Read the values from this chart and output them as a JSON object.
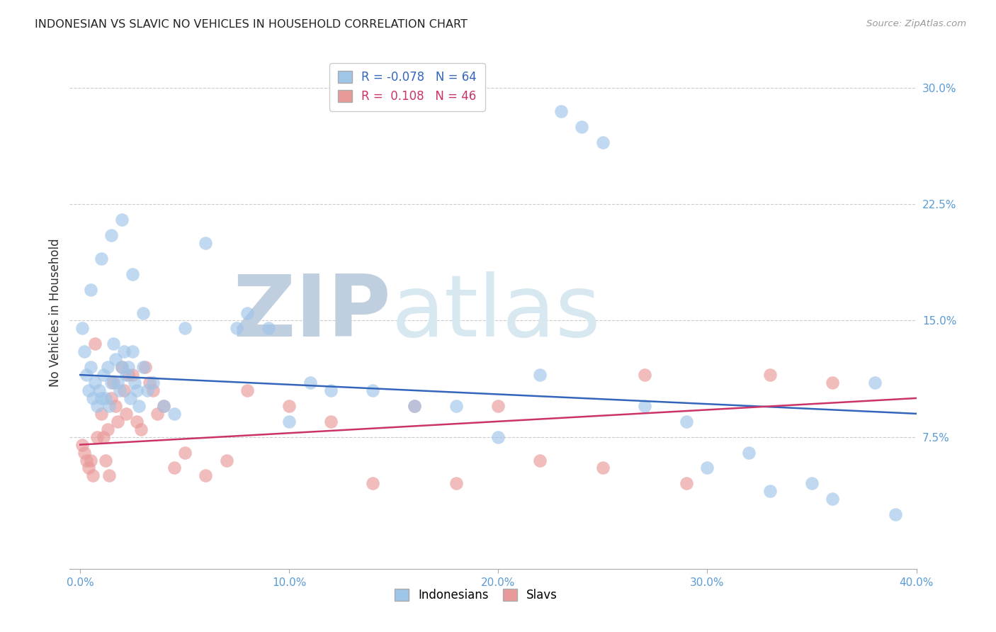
{
  "title": "INDONESIAN VS SLAVIC NO VEHICLES IN HOUSEHOLD CORRELATION CHART",
  "source": "Source: ZipAtlas.com",
  "ylabel": "No Vehicles in Household",
  "xlabel_ticks": [
    "0.0%",
    "",
    "10.0%",
    "",
    "20.0%",
    "",
    "30.0%",
    "",
    "40.0%"
  ],
  "xlabel_vals": [
    0.0,
    5.0,
    10.0,
    15.0,
    20.0,
    25.0,
    30.0,
    35.0,
    40.0
  ],
  "ylabel_ticks": [
    "7.5%",
    "15.0%",
    "22.5%",
    "30.0%"
  ],
  "ylabel_vals": [
    7.5,
    15.0,
    22.5,
    30.0
  ],
  "xlim": [
    -0.5,
    40.0
  ],
  "ylim": [
    -1.0,
    32.0
  ],
  "blue_R": -0.078,
  "blue_N": 64,
  "pink_R": 0.108,
  "pink_N": 46,
  "blue_label": "Indonesians",
  "pink_label": "Slavs",
  "blue_color": "#9fc5e8",
  "pink_color": "#ea9999",
  "blue_line_color": "#3366bb",
  "pink_line_color": "#cc3366",
  "watermark_zip_color": "#c0cfe0",
  "watermark_atlas_color": "#d8e8f0",
  "background_color": "#ffffff",
  "blue_x": [
    0.1,
    0.2,
    0.3,
    0.4,
    0.5,
    0.6,
    0.7,
    0.8,
    0.9,
    1.0,
    1.1,
    1.2,
    1.3,
    1.4,
    1.5,
    1.6,
    1.7,
    1.8,
    1.9,
    2.0,
    2.1,
    2.2,
    2.3,
    2.4,
    2.5,
    2.6,
    2.7,
    2.8,
    3.0,
    3.2,
    3.5,
    4.0,
    4.5,
    5.0,
    6.0,
    7.5,
    8.0,
    9.0,
    10.0,
    11.0,
    12.0,
    14.0,
    16.0,
    18.0,
    20.0,
    22.0,
    23.0,
    24.0,
    25.0,
    27.0,
    29.0,
    30.0,
    32.0,
    33.0,
    35.0,
    36.0,
    38.0,
    39.0,
    0.5,
    1.0,
    1.5,
    2.0,
    2.5,
    3.0
  ],
  "blue_y": [
    14.5,
    13.0,
    11.5,
    10.5,
    12.0,
    10.0,
    11.0,
    9.5,
    10.5,
    10.0,
    11.5,
    10.0,
    12.0,
    9.5,
    11.0,
    13.5,
    12.5,
    11.0,
    10.5,
    12.0,
    13.0,
    11.5,
    12.0,
    10.0,
    13.0,
    11.0,
    10.5,
    9.5,
    12.0,
    10.5,
    11.0,
    9.5,
    9.0,
    14.5,
    20.0,
    14.5,
    15.5,
    14.5,
    8.5,
    11.0,
    10.5,
    10.5,
    9.5,
    9.5,
    7.5,
    11.5,
    28.5,
    27.5,
    26.5,
    9.5,
    8.5,
    5.5,
    6.5,
    4.0,
    4.5,
    3.5,
    11.0,
    2.5,
    17.0,
    19.0,
    20.5,
    21.5,
    18.0,
    15.5
  ],
  "pink_x": [
    0.1,
    0.2,
    0.3,
    0.4,
    0.5,
    0.6,
    0.8,
    1.0,
    1.1,
    1.2,
    1.3,
    1.5,
    1.6,
    1.7,
    1.8,
    2.0,
    2.1,
    2.2,
    2.5,
    2.7,
    2.9,
    3.1,
    3.3,
    3.5,
    3.7,
    4.0,
    4.5,
    5.0,
    6.0,
    7.0,
    8.0,
    10.0,
    12.0,
    14.0,
    16.0,
    18.0,
    20.0,
    22.0,
    25.0,
    27.0,
    29.0,
    33.0,
    36.0,
    0.7,
    1.4,
    2.3
  ],
  "pink_y": [
    7.0,
    6.5,
    6.0,
    5.5,
    6.0,
    5.0,
    7.5,
    9.0,
    7.5,
    6.0,
    8.0,
    10.0,
    11.0,
    9.5,
    8.5,
    12.0,
    10.5,
    9.0,
    11.5,
    8.5,
    8.0,
    12.0,
    11.0,
    10.5,
    9.0,
    9.5,
    5.5,
    6.5,
    5.0,
    6.0,
    10.5,
    9.5,
    8.5,
    4.5,
    9.5,
    4.5,
    9.5,
    6.0,
    5.5,
    11.5,
    4.5,
    11.5,
    11.0,
    13.5,
    5.0,
    11.5
  ]
}
